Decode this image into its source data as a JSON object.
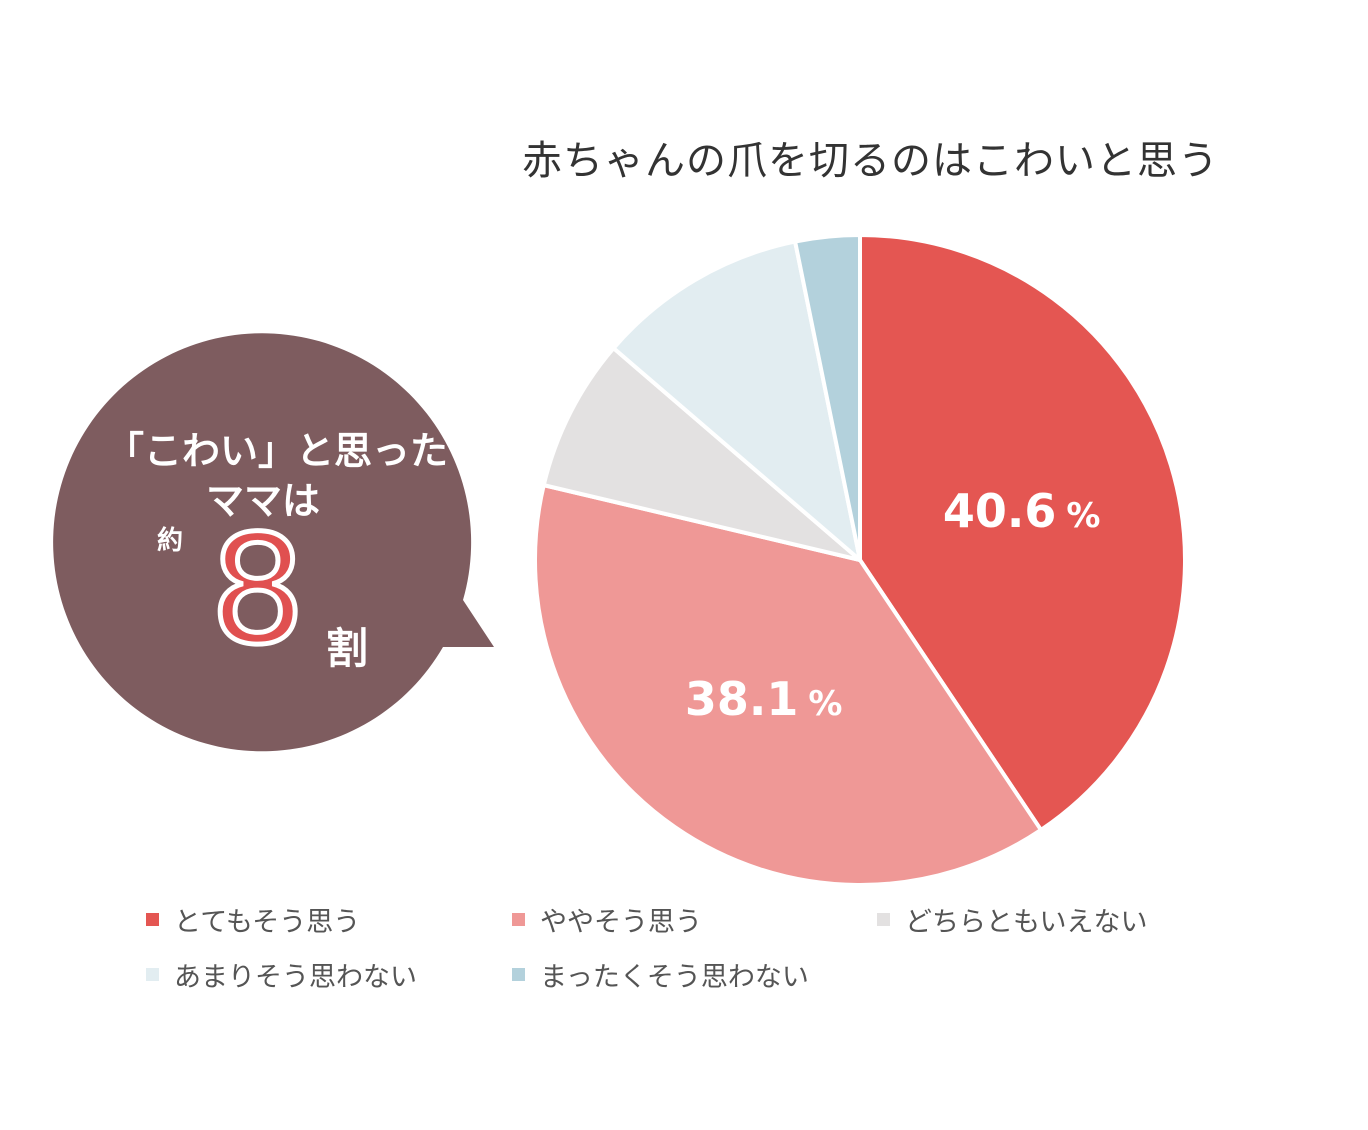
{
  "chart_data": {
    "type": "pie",
    "title": "赤ちゃんの爪を切るのはこわいと思う",
    "categories": [
      "とてもそう思う",
      "ややそう思う",
      "どちらともいえない",
      "あまりそう思わない",
      "まったくそう思わない"
    ],
    "values": [
      40.6,
      38.1,
      7.6,
      10.5,
      3.2
    ],
    "value_labels": [
      "40.6",
      "38.1",
      "",
      "",
      ""
    ],
    "value_unit": "%",
    "colors": [
      "#e45652",
      "#ef9896",
      "#e3e1e1",
      "#e2edf1",
      "#b3d1dc"
    ],
    "legend_placement": "bottom"
  },
  "callout": {
    "line1": "「こわい」と思った",
    "line2": "ママは",
    "approx": "約",
    "number": "8",
    "unit": "割",
    "bg_color": "#7e5c5f",
    "number_color": "#e05050"
  }
}
